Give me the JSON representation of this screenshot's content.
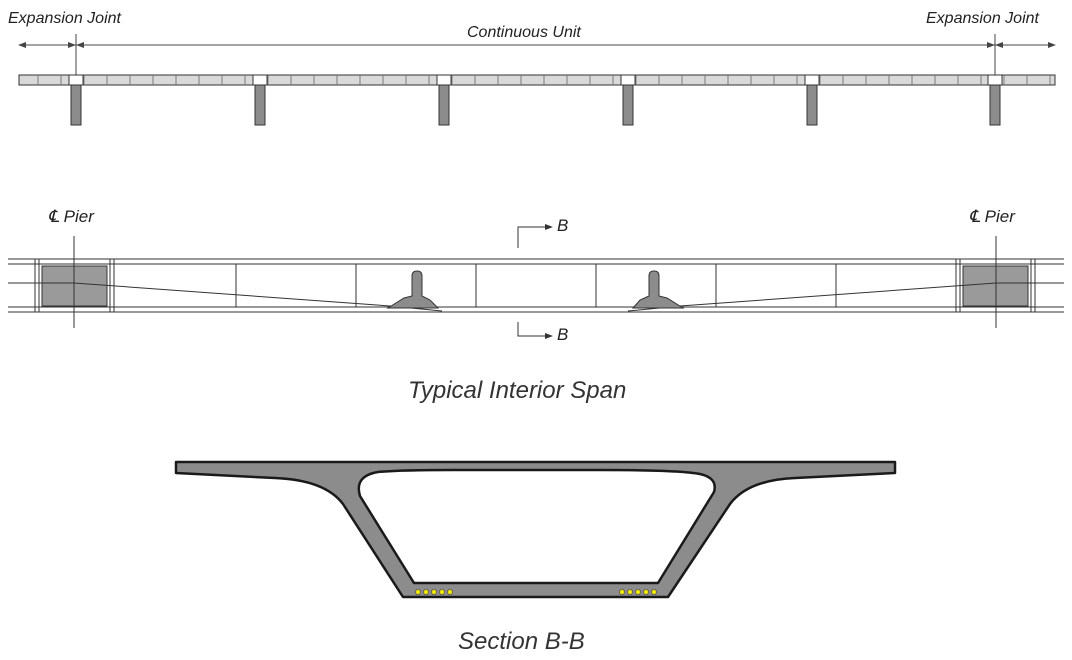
{
  "elevation": {
    "left_joint_label": "Expansion Joint",
    "right_joint_label": "Expansion Joint",
    "unit_label": "Continuous Unit"
  },
  "span": {
    "left_pier_label": "Pier",
    "right_pier_label": "Pier",
    "centerline_symbol": "℄",
    "section_mark_top": "B",
    "section_mark_bottom": "B",
    "caption": "Typical Interior Span"
  },
  "section": {
    "caption": "Section B-B"
  },
  "colors": {
    "concrete": "#8c8c8c",
    "outline": "#1a1a1a",
    "line": "#333333",
    "tendon": "#f2e600"
  }
}
